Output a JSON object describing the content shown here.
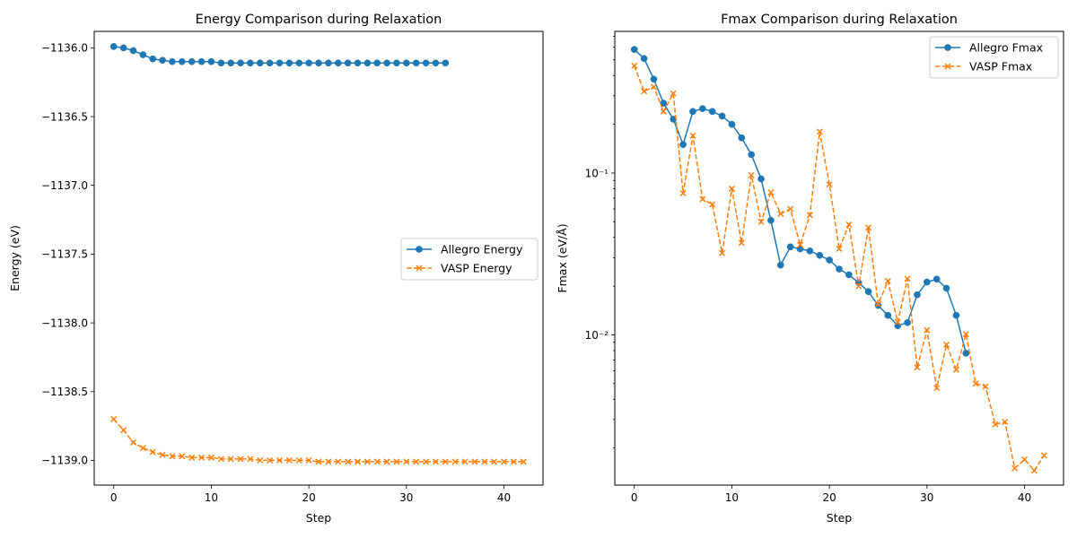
{
  "chart_data": [
    {
      "type": "line",
      "title": "Energy Comparison during Relaxation",
      "xlabel": "Step",
      "ylabel": "Energy (eV)",
      "xlim": [
        -2,
        44
      ],
      "ylim": [
        -1139.18,
        -1135.88
      ],
      "xticks": [
        0,
        10,
        20,
        30,
        40
      ],
      "yticks": [
        -1136.0,
        -1136.5,
        -1137.0,
        -1137.5,
        -1138.0,
        -1138.5,
        -1139.0
      ],
      "ytick_labels": [
        "−1136.0",
        "−1136.5",
        "−1137.0",
        "−1137.5",
        "−1138.0",
        "−1138.5",
        "−1139.0"
      ],
      "yscale": "linear",
      "grid": false,
      "legend_position": "center-right",
      "series": [
        {
          "name": "Allegro Energy",
          "color": "#1f77b4",
          "linestyle": "solid",
          "marker": "circle",
          "x": [
            0,
            1,
            2,
            3,
            4,
            5,
            6,
            7,
            8,
            9,
            10,
            11,
            12,
            13,
            14,
            15,
            16,
            17,
            18,
            19,
            20,
            21,
            22,
            23,
            24,
            25,
            26,
            27,
            28,
            29,
            30,
            31,
            32,
            33,
            34
          ],
          "y": [
            -1135.99,
            -1136.0,
            -1136.02,
            -1136.05,
            -1136.08,
            -1136.09,
            -1136.1,
            -1136.1,
            -1136.1,
            -1136.1,
            -1136.1,
            -1136.11,
            -1136.11,
            -1136.11,
            -1136.11,
            -1136.11,
            -1136.11,
            -1136.11,
            -1136.11,
            -1136.11,
            -1136.11,
            -1136.11,
            -1136.11,
            -1136.11,
            -1136.11,
            -1136.11,
            -1136.11,
            -1136.11,
            -1136.11,
            -1136.11,
            -1136.11,
            -1136.11,
            -1136.11,
            -1136.11,
            -1136.11
          ]
        },
        {
          "name": "VASP Energy",
          "color": "#ff7f0e",
          "linestyle": "dashed",
          "marker": "x",
          "x": [
            0,
            1,
            2,
            3,
            4,
            5,
            6,
            7,
            8,
            9,
            10,
            11,
            12,
            13,
            14,
            15,
            16,
            17,
            18,
            19,
            20,
            21,
            22,
            23,
            24,
            25,
            26,
            27,
            28,
            29,
            30,
            31,
            32,
            33,
            34,
            35,
            36,
            37,
            38,
            39,
            40,
            41,
            42
          ],
          "y": [
            -1138.7,
            -1138.78,
            -1138.87,
            -1138.91,
            -1138.94,
            -1138.96,
            -1138.97,
            -1138.97,
            -1138.98,
            -1138.98,
            -1138.98,
            -1138.99,
            -1138.99,
            -1138.99,
            -1138.99,
            -1139.0,
            -1139.0,
            -1139.0,
            -1139.0,
            -1139.0,
            -1139.0,
            -1139.01,
            -1139.01,
            -1139.01,
            -1139.01,
            -1139.01,
            -1139.01,
            -1139.01,
            -1139.01,
            -1139.01,
            -1139.01,
            -1139.01,
            -1139.01,
            -1139.01,
            -1139.01,
            -1139.01,
            -1139.01,
            -1139.01,
            -1139.01,
            -1139.01,
            -1139.01,
            -1139.01,
            -1139.01
          ]
        }
      ]
    },
    {
      "type": "line",
      "title": "Fmax Comparison during Relaxation",
      "xlabel": "Step",
      "ylabel": "Fmax (eV/Å)",
      "xlim": [
        -2,
        44
      ],
      "ylim": [
        0.00118,
        0.75
      ],
      "xticks": [
        0,
        10,
        20,
        30,
        40
      ],
      "yticks": [
        0.1,
        0.01
      ],
      "ytick_labels": [
        "10⁻¹",
        "10⁻²"
      ],
      "yscale": "log",
      "grid": false,
      "legend_position": "top-right",
      "series": [
        {
          "name": "Allegro Fmax",
          "color": "#1f77b4",
          "linestyle": "solid",
          "marker": "circle",
          "x": [
            0,
            1,
            2,
            3,
            4,
            5,
            6,
            7,
            8,
            9,
            10,
            11,
            12,
            13,
            14,
            15,
            16,
            17,
            18,
            19,
            20,
            21,
            22,
            23,
            24,
            25,
            26,
            27,
            28,
            29,
            30,
            31,
            32,
            33,
            34
          ],
          "y": [
            0.58,
            0.51,
            0.38,
            0.27,
            0.215,
            0.15,
            0.24,
            0.25,
            0.24,
            0.225,
            0.2,
            0.165,
            0.13,
            0.092,
            0.051,
            0.027,
            0.035,
            0.034,
            0.033,
            0.031,
            0.029,
            0.0255,
            0.0235,
            0.021,
            0.0185,
            0.0152,
            0.0132,
            0.0114,
            0.0119,
            0.0177,
            0.0212,
            0.0221,
            0.0194,
            0.0132,
            0.0077
          ]
        },
        {
          "name": "VASP Fmax",
          "color": "#ff7f0e",
          "linestyle": "dashed",
          "marker": "x",
          "x": [
            0,
            1,
            2,
            3,
            4,
            5,
            6,
            7,
            8,
            9,
            10,
            11,
            12,
            13,
            14,
            15,
            16,
            17,
            18,
            19,
            20,
            21,
            22,
            23,
            24,
            25,
            26,
            27,
            28,
            29,
            30,
            31,
            32,
            33,
            34,
            35,
            36,
            37,
            38,
            39,
            40,
            41,
            42
          ],
          "y": [
            0.46,
            0.32,
            0.34,
            0.24,
            0.31,
            0.075,
            0.17,
            0.069,
            0.064,
            0.032,
            0.08,
            0.037,
            0.097,
            0.05,
            0.076,
            0.056,
            0.06,
            0.036,
            0.055,
            0.18,
            0.085,
            0.034,
            0.048,
            0.02,
            0.046,
            0.0155,
            0.0215,
            0.012,
            0.0222,
            0.0063,
            0.0107,
            0.0047,
            0.0087,
            0.0061,
            0.0101,
            0.005,
            0.0048,
            0.0028,
            0.0029,
            0.0015,
            0.0017,
            0.00145,
            0.0018
          ]
        }
      ]
    }
  ]
}
